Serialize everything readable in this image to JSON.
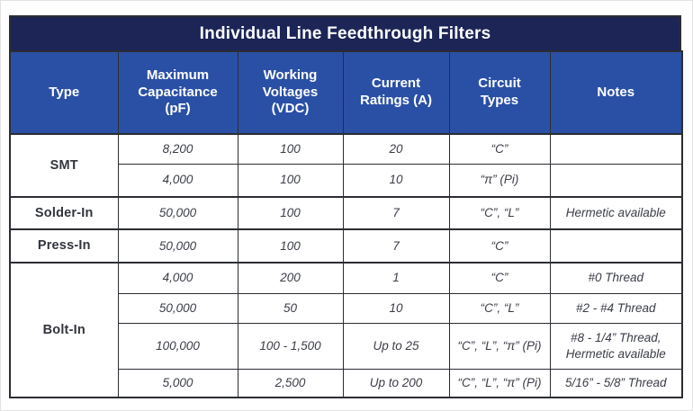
{
  "title": "Individual Line Feedthrough Filters",
  "colors": {
    "title_bar_bg": "#1c2556",
    "header_bg": "#2a50a5",
    "border": "#2b2d33",
    "header_text": "#ffffff",
    "cell_text": "#3b3d47"
  },
  "columns": [
    "Type",
    "Maximum Capacitance (pF)",
    "Working Voltages (VDC)",
    "Current Ratings (A)",
    "Circuit Types",
    "Notes"
  ],
  "groups": [
    {
      "type": "SMT",
      "rows": [
        {
          "cap": "8,200",
          "voltage": "100",
          "current": "20",
          "circuit": "“C”",
          "notes": ""
        },
        {
          "cap": "4,000",
          "voltage": "100",
          "current": "10",
          "circuit": "“π” (Pi)",
          "notes": ""
        }
      ]
    },
    {
      "type": "Solder-In",
      "rows": [
        {
          "cap": "50,000",
          "voltage": "100",
          "current": "7",
          "circuit": "“C”, “L”",
          "notes": "Hermetic available"
        }
      ]
    },
    {
      "type": "Press-In",
      "rows": [
        {
          "cap": "50,000",
          "voltage": "100",
          "current": "7",
          "circuit": "“C”",
          "notes": ""
        }
      ]
    },
    {
      "type": "Bolt-In",
      "rows": [
        {
          "cap": "4,000",
          "voltage": "200",
          "current": "1",
          "circuit": "“C”",
          "notes": "#0 Thread"
        },
        {
          "cap": "50,000",
          "voltage": "50",
          "current": "10",
          "circuit": "“C”, “L”",
          "notes": "#2 - #4 Thread"
        },
        {
          "cap": "100,000",
          "voltage": "100 - 1,500",
          "current": "Up to 25",
          "circuit": "“C”, “L”, “π” (Pi)",
          "notes": "#8 - 1/4” Thread,\nHermetic available"
        },
        {
          "cap": "5,000",
          "voltage": "2,500",
          "current": "Up to 200",
          "circuit": "“C”, “L”, “π” (Pi)",
          "notes": "5/16” - 5/8” Thread"
        }
      ]
    }
  ]
}
